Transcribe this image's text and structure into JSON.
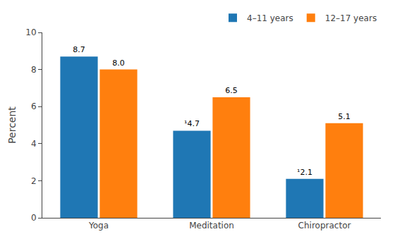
{
  "chart_data": {
    "type": "bar",
    "categories": [
      "Yoga",
      "Meditation",
      "Chiropractor"
    ],
    "series": [
      {
        "name": "4–11 years",
        "values": [
          8.7,
          4.7,
          2.1
        ],
        "value_labels": [
          "8.7",
          "¹4.7",
          "¹2.1"
        ]
      },
      {
        "name": "12–17 years",
        "values": [
          8.0,
          6.5,
          5.1
        ],
        "value_labels": [
          "8.0",
          "6.5",
          "5.1"
        ]
      }
    ],
    "ylabel": "Percent",
    "ylim": [
      0,
      10
    ],
    "yticks": [
      0,
      2,
      4,
      6,
      8,
      10
    ],
    "grid": false,
    "legend": "top right",
    "data_labels": true
  }
}
